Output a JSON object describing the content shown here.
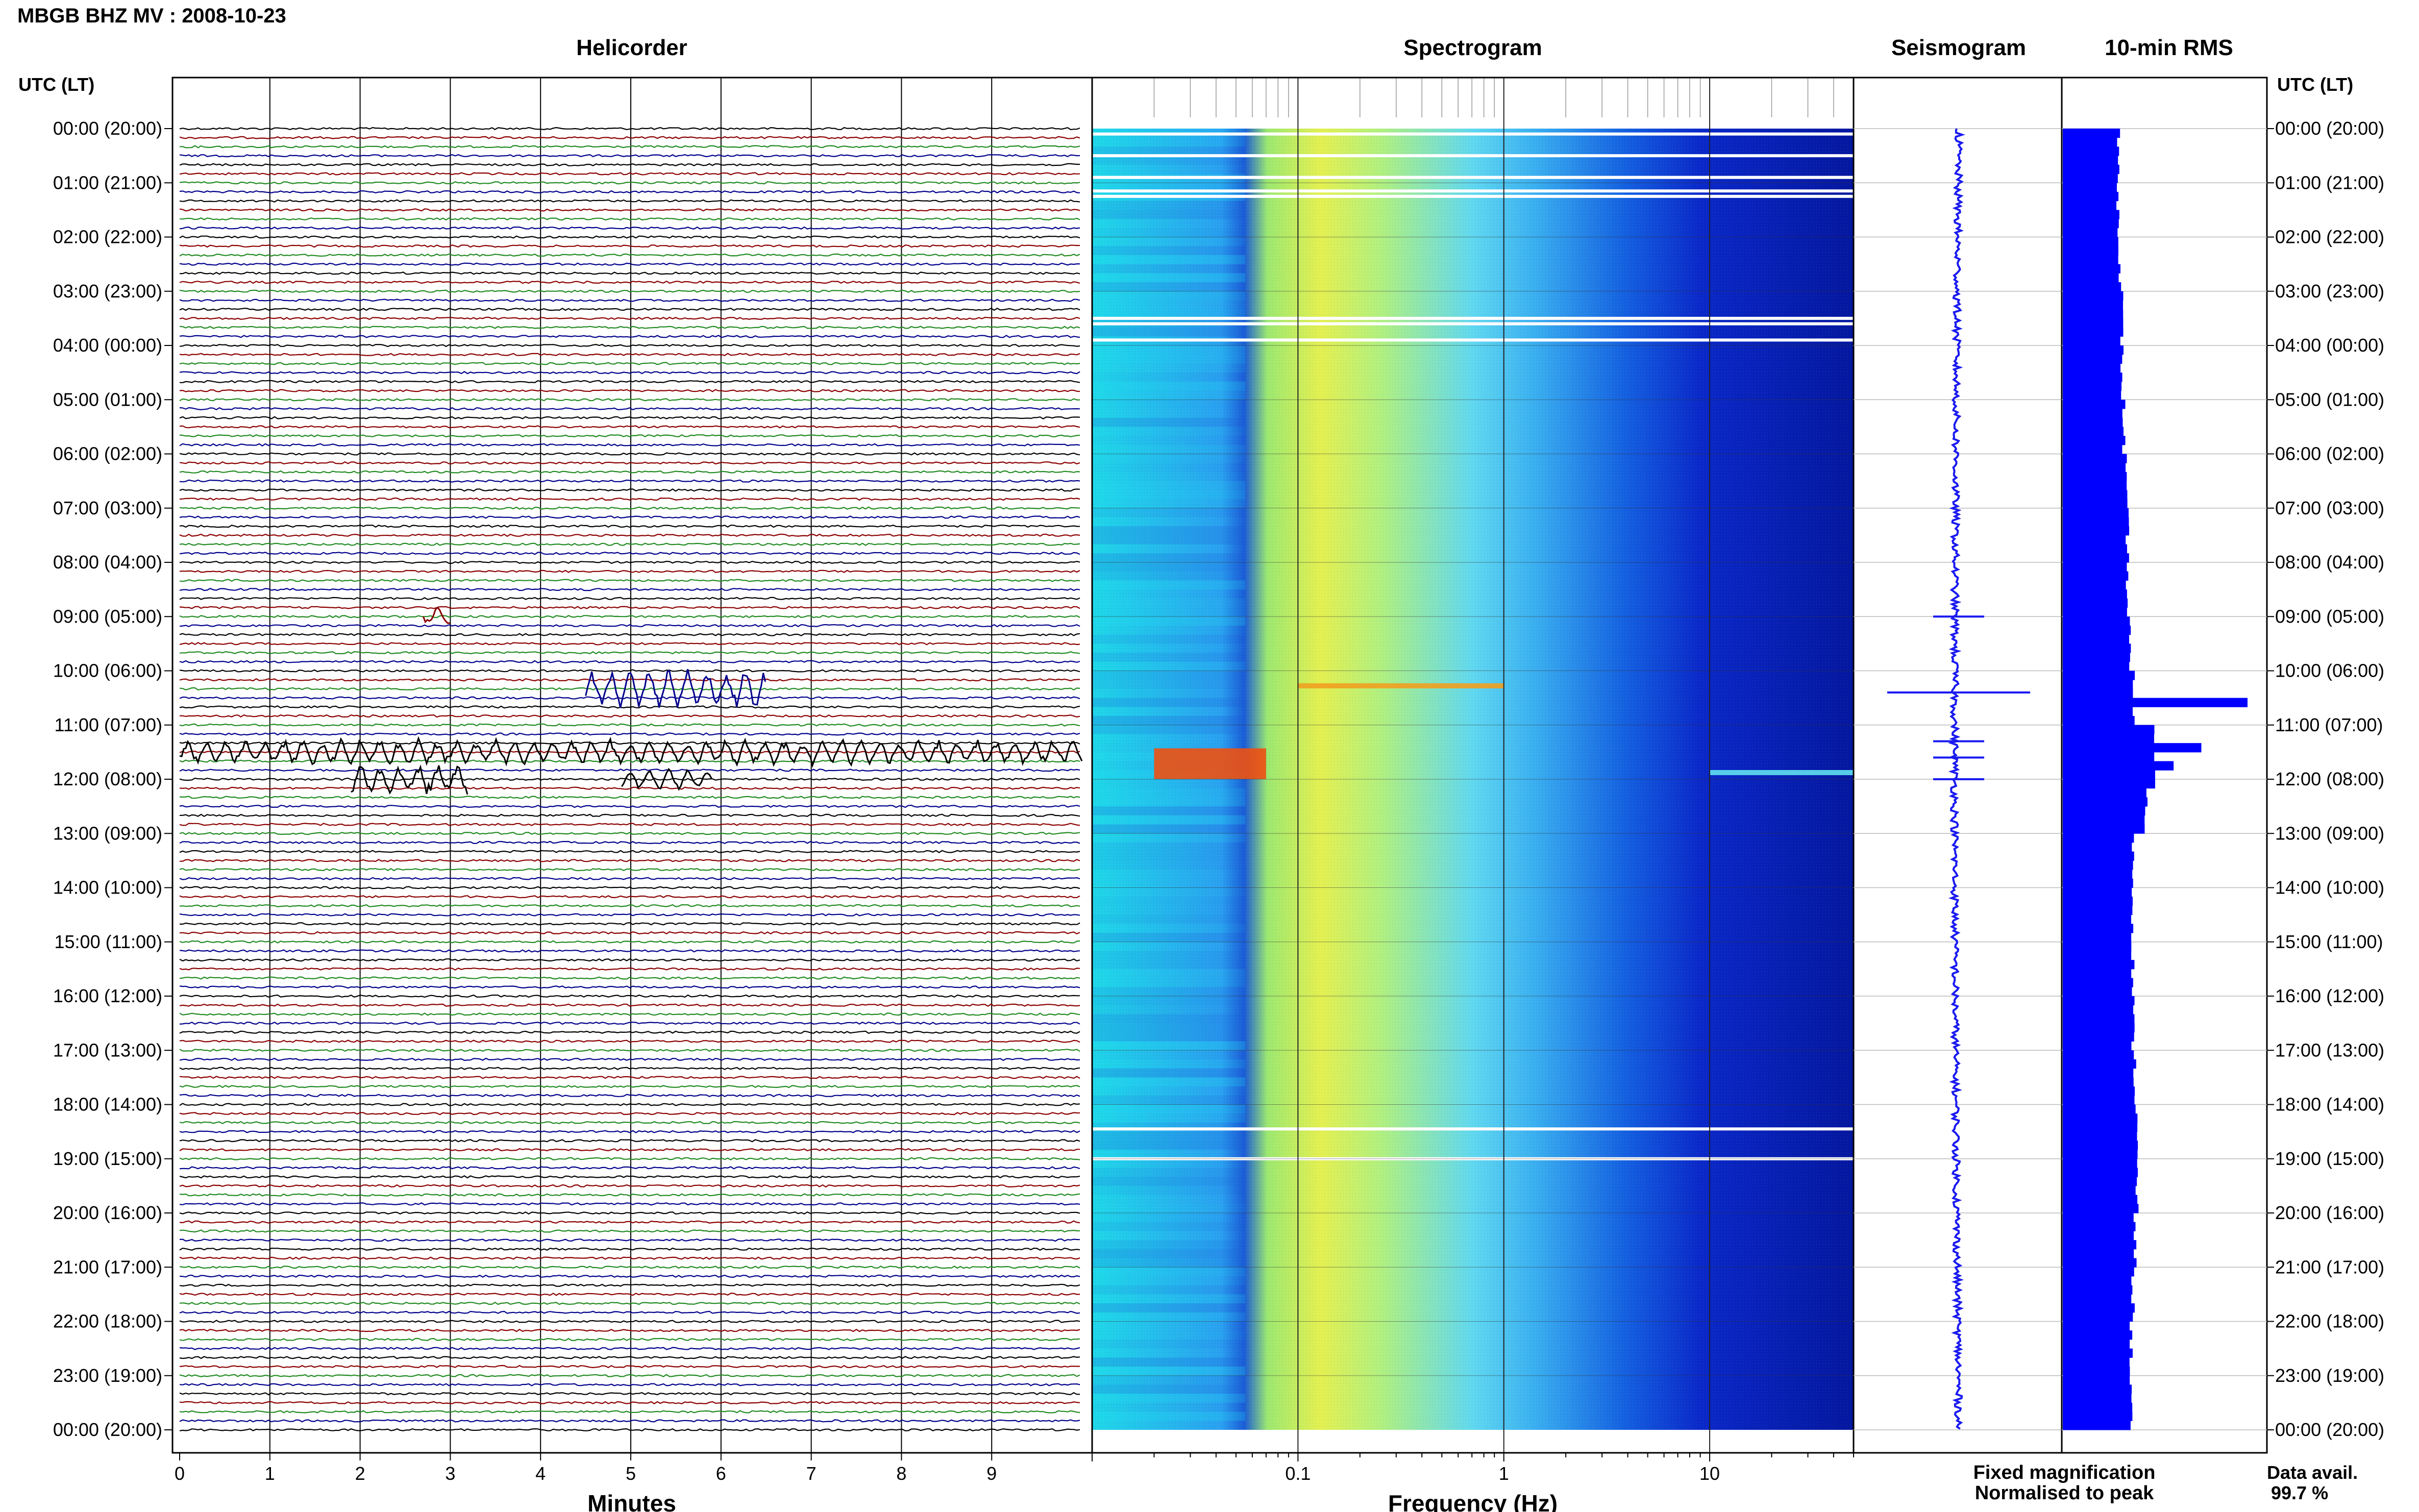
{
  "header": {
    "title": "MBGB BHZ MV : 2008-10-23",
    "utc_label_left": "UTC (LT)",
    "utc_label_right": "UTC (LT)"
  },
  "panels": {
    "helicorder": "Helicorder",
    "spectrogram": "Spectrogram",
    "seismogram": "Seismogram",
    "rms": "10-min RMS"
  },
  "time_labels": [
    "00:00 (20:00)",
    "01:00 (21:00)",
    "02:00 (22:00)",
    "03:00 (23:00)",
    "04:00 (00:00)",
    "05:00 (01:00)",
    "06:00 (02:00)",
    "07:00 (03:00)",
    "08:00 (04:00)",
    "09:00 (05:00)",
    "10:00 (06:00)",
    "11:00 (07:00)",
    "12:00 (08:00)",
    "13:00 (09:00)",
    "14:00 (10:00)",
    "15:00 (11:00)",
    "16:00 (12:00)",
    "17:00 (13:00)",
    "18:00 (14:00)",
    "19:00 (15:00)",
    "20:00 (16:00)",
    "21:00 (17:00)",
    "22:00 (18:00)",
    "23:00 (19:00)",
    "00:00 (20:00)"
  ],
  "footer": {
    "minutes_label": "Minutes",
    "frequency_label": "Frequency (Hz)",
    "legend_fixed": "Fixed magnification",
    "legend_normalised": "Normalised to peak",
    "data_avail_label": "Data avail.",
    "data_avail_value": "99.7 %"
  },
  "colors": {
    "fixed": "#1a1af0",
    "normalised": "#e00000",
    "trace_cycle": [
      "#000000",
      "#8b0000",
      "#228b22",
      "#00008b"
    ],
    "rms_bar": "#0000ff"
  },
  "chart_data": [
    {
      "type": "line",
      "title": "Helicorder",
      "xlabel": "Minutes",
      "xticks": [
        "0",
        "1",
        "2",
        "3",
        "4",
        "5",
        "6",
        "7",
        "8",
        "9"
      ],
      "xlim": [
        0,
        10
      ],
      "lines_per_hour": 6,
      "hours": 24,
      "events": [
        {
          "hour": 9.0,
          "minute_start": 2.7,
          "minute_end": 3.0,
          "color": "#8b0000",
          "amp": 1.2
        },
        {
          "hour": 10.33,
          "minute_start": 4.5,
          "minute_end": 6.5,
          "color": "#00008b",
          "amp": 2.5
        },
        {
          "hour": 11.5,
          "minute_start": 0.0,
          "minute_end": 10.0,
          "color": "#000000",
          "amp": 1.6
        },
        {
          "hour": 12.0,
          "minute_start": 1.9,
          "minute_end": 3.2,
          "color": "#000000",
          "amp": 2.0
        },
        {
          "hour": 12.0,
          "minute_start": 4.9,
          "minute_end": 5.9,
          "color": "#000000",
          "amp": 1.3
        }
      ]
    },
    {
      "type": "heatmap",
      "title": "Spectrogram",
      "xlabel": "Frequency (Hz)",
      "x_scale": "log",
      "xlim": [
        0.01,
        50
      ],
      "xticks": [
        "0.1",
        "1",
        "10"
      ],
      "colormap": "jet",
      "gaps_utc_hours": [
        0.1,
        0.5,
        0.9,
        1.15,
        1.25,
        3.5,
        3.6,
        3.9,
        18.45,
        19.0
      ],
      "events": [
        {
          "hour": 10.4,
          "freq_min": 0.1,
          "freq_max": 1.0,
          "intensity": "high"
        },
        {
          "hour": 11.6,
          "freq_min": 0.02,
          "freq_max": 0.07,
          "intensity": "very high"
        },
        {
          "hour": 12.0,
          "freq_min": 10,
          "freq_max": 50,
          "intensity": "moderate"
        }
      ]
    },
    {
      "type": "line",
      "title": "Seismogram",
      "orientation": "vertical",
      "series": [
        {
          "name": "Fixed magnification"
        }
      ],
      "spikes_utc_hours": [
        9.0,
        10.4,
        11.3,
        11.6,
        12.0
      ]
    },
    {
      "type": "bar",
      "title": "10-min RMS",
      "orientation": "horizontal",
      "bins_per_hour": 6,
      "relative_values_by_hour": [
        0.3,
        0.3,
        0.31,
        0.32,
        0.32,
        0.33,
        0.34,
        0.35,
        0.35,
        0.36,
        0.38,
        0.5,
        0.45,
        0.38,
        0.38,
        0.38,
        0.38,
        0.39,
        0.4,
        0.4,
        0.39,
        0.38,
        0.37,
        0.37
      ],
      "peaks": [
        {
          "hour": 10.5,
          "value": 1.0
        },
        {
          "hour": 11.0,
          "value": 0.4
        },
        {
          "hour": 11.2,
          "value": 0.42
        },
        {
          "hour": 11.4,
          "value": 0.75
        },
        {
          "hour": 11.6,
          "value": 0.6
        },
        {
          "hour": 12.0,
          "value": 0.5
        }
      ]
    }
  ]
}
